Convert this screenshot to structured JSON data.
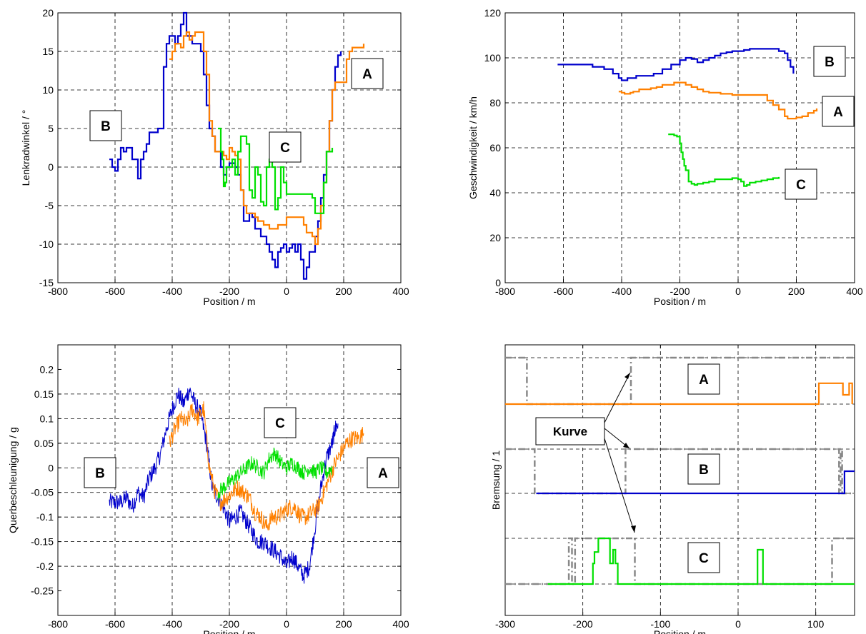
{
  "chart_data": [
    {
      "id": "steer",
      "type": "line",
      "xlabel": "Position / m",
      "ylabel": "Lenkradwinkel / °",
      "xlim": [
        -800,
        400
      ],
      "ylim": [
        -15,
        20
      ],
      "xticks": [
        "-800",
        "-600",
        "-400",
        "-200",
        "0",
        "200",
        "400"
      ],
      "yticks": [
        "-15",
        "-10",
        "-5",
        "0",
        "5",
        "10",
        "15",
        "20"
      ],
      "grid": true,
      "series": [
        {
          "name": "B",
          "color": "#0000cc",
          "x": [
            -620,
            -610,
            -600,
            -590,
            -580,
            -570,
            -560,
            -540,
            -520,
            -510,
            -500,
            -490,
            -480,
            -470,
            -450,
            -430,
            -420,
            -410,
            -400,
            -390,
            -380,
            -370,
            -360,
            -350,
            -340,
            -330,
            -320,
            -310,
            -300,
            -290,
            -280,
            -270,
            -260,
            -250,
            -240,
            -230,
            -220,
            -210,
            -200,
            -190,
            -180,
            -170,
            -160,
            -150,
            -140,
            -130,
            -120,
            -110,
            -100,
            -90,
            -80,
            -70,
            -60,
            -50,
            -40,
            -30,
            -20,
            -10,
            0,
            10,
            20,
            30,
            40,
            50,
            60,
            70,
            80,
            90,
            100,
            110,
            120,
            130,
            140,
            150,
            160,
            170,
            180,
            190
          ],
          "y": [
            1,
            0,
            -0.5,
            1,
            2.5,
            2,
            2.5,
            1,
            -1.5,
            1,
            2,
            3,
            4.5,
            4.5,
            5,
            13,
            16,
            17,
            17,
            16,
            17,
            18.5,
            20,
            17,
            17,
            16,
            16,
            16,
            15,
            12,
            8,
            5,
            4,
            2,
            2,
            0,
            -1,
            0,
            0.5,
            0.5,
            0,
            -1,
            -3,
            -7,
            -7,
            -6,
            -6.5,
            -8,
            -8,
            -9,
            -9,
            -10,
            -11,
            -12,
            -13,
            -11,
            -10.5,
            -10,
            -11,
            -10.5,
            -10,
            -11,
            -10,
            -12,
            -14.5,
            -13,
            -11,
            -11,
            -9,
            -7,
            -4,
            -1,
            2,
            6,
            10,
            13,
            14.5,
            15
          ]
        },
        {
          "name": "A",
          "color": "#ff8000",
          "x": [
            -410,
            -400,
            -390,
            -380,
            -370,
            -360,
            -350,
            -340,
            -330,
            -320,
            -310,
            -300,
            -290,
            -280,
            -270,
            -260,
            -250,
            -240,
            -230,
            -220,
            -210,
            -200,
            -190,
            -180,
            -170,
            -160,
            -150,
            -140,
            -130,
            -120,
            -110,
            -100,
            -90,
            -80,
            -70,
            -60,
            -50,
            -40,
            -30,
            -20,
            -10,
            0,
            10,
            20,
            30,
            40,
            50,
            60,
            70,
            80,
            90,
            100,
            110,
            120,
            130,
            140,
            150,
            160,
            170,
            180,
            190,
            200,
            210,
            220,
            230,
            240,
            250,
            260,
            270
          ],
          "y": [
            14,
            15,
            16,
            16,
            15.5,
            17,
            17.5,
            16.5,
            17,
            17.5,
            17.5,
            17.5,
            15,
            12,
            6,
            4,
            2,
            2,
            2,
            1.5,
            1,
            2.5,
            2,
            1.5,
            1,
            -3,
            -5,
            -6,
            -6,
            -6,
            -6.5,
            -7,
            -7,
            -7.5,
            -7.5,
            -8,
            -8,
            -8,
            -7.5,
            -7.5,
            -7.5,
            -6.5,
            -6.5,
            -6.5,
            -6.5,
            -6.5,
            -6.5,
            -7.5,
            -8.5,
            -8.5,
            -9,
            -10,
            -8,
            -5,
            -2,
            2,
            6,
            10,
            11,
            11,
            11,
            11,
            14,
            15,
            15.5,
            15.5,
            15.5,
            15.5,
            16
          ]
        },
        {
          "name": "C",
          "color": "#00e000",
          "x": [
            -240,
            -230,
            -225,
            -220,
            -215,
            -210,
            -200,
            -190,
            -180,
            -170,
            -160,
            -150,
            -140,
            -130,
            -120,
            -110,
            -100,
            -90,
            -80,
            -70,
            -60,
            -50,
            -40,
            -30,
            -20,
            -10,
            0,
            10,
            20,
            30,
            40,
            50,
            60,
            70,
            80,
            90,
            100,
            110,
            120,
            130,
            140,
            150,
            160
          ],
          "y": [
            5,
            2,
            1,
            -2.5,
            -2,
            0,
            0,
            1,
            -1,
            2,
            4,
            4,
            3,
            -3,
            -4,
            0,
            -1,
            -4.5,
            -5,
            0,
            1,
            0,
            -5.5,
            -4,
            0,
            -2,
            -3.5,
            -3.5,
            -3.5,
            -3.5,
            -3.5,
            -3.5,
            -3.5,
            -3.5,
            -3.5,
            -4,
            -6,
            -6,
            -6,
            -2,
            2,
            2,
            2.5
          ]
        }
      ],
      "annotations": [
        "B",
        "C",
        "A"
      ]
    },
    {
      "id": "speed",
      "type": "line",
      "xlabel": "Position / m",
      "ylabel": "Geschwindigkeit / km/h",
      "xlim": [
        -800,
        400
      ],
      "ylim": [
        0,
        120
      ],
      "xticks": [
        "-800",
        "-600",
        "-400",
        "-200",
        "0",
        "200",
        "400"
      ],
      "yticks": [
        "0",
        "20",
        "40",
        "60",
        "80",
        "100",
        "120"
      ],
      "grid": true,
      "series": [
        {
          "name": "B",
          "color": "#0000cc",
          "x": [
            -620,
            -580,
            -540,
            -500,
            -460,
            -430,
            -410,
            -400,
            -380,
            -350,
            -320,
            -290,
            -260,
            -230,
            -200,
            -180,
            -160,
            -140,
            -120,
            -100,
            -80,
            -60,
            -40,
            -20,
            0,
            20,
            40,
            60,
            80,
            100,
            120,
            140,
            160,
            170,
            180,
            190
          ],
          "y": [
            97,
            97,
            97,
            96,
            95,
            93,
            91,
            90,
            91,
            92,
            92,
            93,
            95,
            97,
            99,
            100,
            99.5,
            98,
            99,
            100,
            101,
            102,
            102.5,
            103,
            103,
            103.5,
            104,
            104,
            104,
            104,
            104,
            103,
            102,
            99,
            96,
            93
          ]
        },
        {
          "name": "A",
          "color": "#ff8000",
          "x": [
            -410,
            -400,
            -390,
            -380,
            -370,
            -360,
            -340,
            -320,
            -300,
            -280,
            -260,
            -240,
            -220,
            -200,
            -180,
            -160,
            -140,
            -120,
            -100,
            -80,
            -60,
            -40,
            -20,
            0,
            20,
            40,
            60,
            80,
            100,
            120,
            140,
            160,
            170,
            180,
            200,
            220,
            240,
            260,
            270
          ],
          "y": [
            85,
            84.5,
            84,
            84,
            84.5,
            85,
            86,
            86,
            86.5,
            87,
            88,
            88,
            89,
            89,
            88,
            87,
            86,
            85,
            84.5,
            84.5,
            84,
            84,
            83.5,
            83.5,
            83.5,
            83.5,
            83.5,
            83.5,
            81,
            79,
            77,
            74,
            73,
            73,
            73.5,
            74,
            75.5,
            76.5,
            77.5
          ]
        },
        {
          "name": "C",
          "color": "#00e000",
          "x": [
            -240,
            -230,
            -220,
            -210,
            -200,
            -195,
            -190,
            -185,
            -180,
            -170,
            -160,
            -150,
            -140,
            -120,
            -100,
            -80,
            -60,
            -40,
            -20,
            0,
            10,
            20,
            30,
            40,
            60,
            80,
            100,
            120,
            140
          ],
          "y": [
            66,
            66,
            65.5,
            65,
            62,
            58,
            55,
            52,
            50,
            45,
            44,
            43.5,
            44,
            44.5,
            45,
            46,
            46,
            46,
            46.5,
            46,
            45,
            43,
            43.5,
            44.5,
            45,
            45.5,
            46,
            46.5,
            47
          ]
        }
      ],
      "annotations": [
        "B",
        "A",
        "C"
      ]
    },
    {
      "id": "lat",
      "type": "line",
      "xlabel": "Position / m",
      "ylabel": "Querbeschleunigung / g",
      "xlim": [
        -800,
        400
      ],
      "ylim": [
        -0.3,
        0.25
      ],
      "xticks": [
        "-800",
        "-600",
        "-400",
        "-200",
        "0",
        "200",
        "400"
      ],
      "yticks": [
        "-0.25",
        "-0.2",
        "-0.15",
        "-0.1",
        "-0.05",
        "0",
        "0.05",
        "0.1",
        "0.15",
        "0.2"
      ],
      "grid": true,
      "noise": true,
      "series": [
        {
          "name": "B",
          "color": "#0000cc",
          "noise_amp": 0.018,
          "x": [
            -620,
            -600,
            -580,
            -560,
            -540,
            -520,
            -500,
            -480,
            -460,
            -440,
            -420,
            -400,
            -380,
            -360,
            -340,
            -320,
            -300,
            -280,
            -260,
            -240,
            -220,
            -200,
            -180,
            -160,
            -140,
            -120,
            -100,
            -80,
            -60,
            -40,
            -20,
            0,
            20,
            40,
            60,
            80,
            100,
            120,
            140,
            160,
            170,
            180
          ],
          "y": [
            -0.07,
            -0.07,
            -0.07,
            -0.06,
            -0.08,
            -0.05,
            -0.06,
            -0.02,
            0.0,
            0.03,
            0.08,
            0.12,
            0.15,
            0.13,
            0.16,
            0.13,
            0.11,
            0.05,
            -0.04,
            -0.06,
            -0.08,
            -0.11,
            -0.1,
            -0.09,
            -0.11,
            -0.13,
            -0.15,
            -0.15,
            -0.16,
            -0.17,
            -0.18,
            -0.2,
            -0.18,
            -0.2,
            -0.22,
            -0.2,
            -0.12,
            -0.04,
            0.02,
            0.05,
            0.08,
            0.09
          ]
        },
        {
          "name": "A",
          "color": "#ff8000",
          "noise_amp": 0.018,
          "x": [
            -410,
            -390,
            -370,
            -350,
            -330,
            -310,
            -290,
            -270,
            -250,
            -230,
            -210,
            -190,
            -170,
            -150,
            -130,
            -110,
            -90,
            -70,
            -50,
            -30,
            -10,
            10,
            30,
            50,
            70,
            90,
            110,
            130,
            150,
            170,
            190,
            210,
            230,
            250,
            270
          ],
          "y": [
            0.05,
            0.08,
            0.1,
            0.09,
            0.12,
            0.1,
            0.12,
            0.0,
            -0.05,
            -0.07,
            -0.06,
            -0.05,
            -0.04,
            -0.05,
            -0.06,
            -0.09,
            -0.1,
            -0.12,
            -0.1,
            -0.1,
            -0.09,
            -0.08,
            -0.08,
            -0.1,
            -0.1,
            -0.09,
            -0.08,
            -0.05,
            -0.02,
            0.01,
            0.03,
            0.05,
            0.06,
            0.06,
            0.07
          ]
        },
        {
          "name": "C",
          "color": "#00e000",
          "noise_amp": 0.016,
          "x": [
            -240,
            -220,
            -200,
            -180,
            -160,
            -140,
            -120,
            -100,
            -80,
            -60,
            -40,
            -20,
            0,
            20,
            40,
            60,
            80,
            100,
            120,
            140,
            160
          ],
          "y": [
            -0.05,
            -0.04,
            -0.03,
            -0.02,
            -0.01,
            0.0,
            0.01,
            0.0,
            -0.01,
            0.02,
            0.03,
            0.01,
            0.0,
            0.01,
            0.0,
            -0.01,
            0.0,
            -0.01,
            0.0,
            -0.01,
            0.0
          ]
        }
      ],
      "annotations": [
        "C",
        "B",
        "A"
      ]
    },
    {
      "id": "brake",
      "type": "step",
      "xlabel": "Position / m",
      "ylabel": "Bremsung / 1",
      "xlim": [
        -300,
        150
      ],
      "xticks": [
        "-300",
        "-200",
        "-100",
        "0",
        "100"
      ],
      "grid": true,
      "note": "Three stacked lanes (A top, B middle, C bottom), each with a dashed grey curve indicator (0/1) and a solid braking signal (0/1).",
      "lanes": [
        {
          "name": "A",
          "color": "#ff8000",
          "curve_x": [
            -300,
            -272,
            -272,
            -138,
            -138,
            150
          ],
          "curve_y": [
            1,
            1,
            0,
            0,
            1,
            1
          ],
          "brake_x": [
            -300,
            104,
            104,
            135,
            135,
            143,
            143,
            147,
            147
          ],
          "brake_y": [
            0,
            0,
            0.45,
            0.45,
            0.2,
            0.2,
            0.45,
            0.45,
            0
          ]
        },
        {
          "name": "B",
          "color": "#0000cc",
          "curve_x": [
            -300,
            -262,
            -262,
            -145,
            -145,
            130,
            130,
            132,
            132,
            134,
            134,
            150
          ],
          "curve_y": [
            1,
            1,
            0,
            0,
            1,
            1,
            0,
            0,
            1,
            1,
            0,
            0
          ],
          "brake_x": [
            -260,
            137,
            137,
            150
          ],
          "brake_y": [
            0,
            0,
            0.5,
            0.5
          ]
        },
        {
          "name": "C",
          "color": "#00e000",
          "curve_x": [
            -300,
            -218,
            -218,
            -214,
            -214,
            -210,
            -210,
            -133,
            -133,
            121,
            121,
            150
          ],
          "curve_y": [
            0,
            0,
            1,
            1,
            0,
            0,
            1,
            1,
            0,
            0,
            1,
            1
          ],
          "brake_x": [
            -245,
            -187,
            -187,
            -185,
            -185,
            -180,
            -180,
            -165,
            -165,
            -161,
            -161,
            -158,
            -158,
            -155,
            -155,
            25,
            25,
            32,
            32,
            150
          ],
          "brake_y": [
            0,
            0,
            0.45,
            0.45,
            0.7,
            0.7,
            1,
            1,
            0.45,
            0.45,
            0.75,
            0.75,
            0.45,
            0.45,
            0,
            0,
            0.75,
            0.75,
            0,
            0
          ]
        }
      ],
      "annotations": [
        "A",
        "B",
        "C",
        "Kurve"
      ]
    }
  ]
}
